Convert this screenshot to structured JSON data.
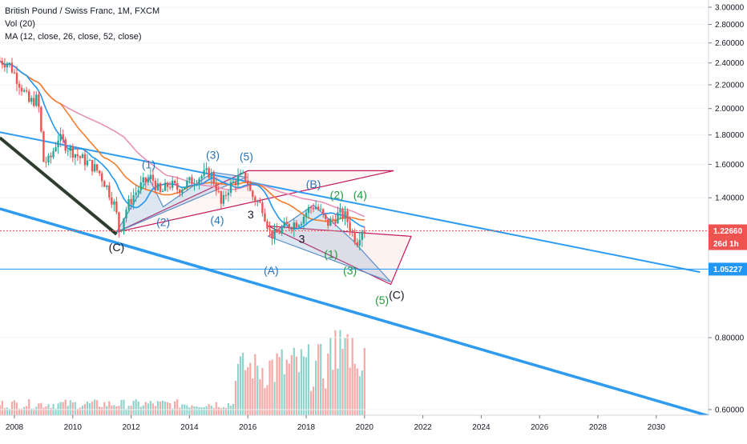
{
  "legend": {
    "title": "British Pound / Swiss Franc, 1M, FXCM",
    "volume": "Vol (20)",
    "ma": "MA (12, close, 26, close, 52, close)"
  },
  "price_axis": {
    "ticks": [
      3.0,
      2.8,
      2.6,
      2.4,
      2.2,
      2.0,
      1.8,
      1.6,
      1.4,
      0.8,
      0.6
    ],
    "tick_labels": [
      "3.00000",
      "2.80000",
      "2.60000",
      "2.40000",
      "2.20000",
      "2.00000",
      "1.80000",
      "1.60000",
      "1.40000",
      "0.80000",
      "0.60000"
    ],
    "current_price_label": "1.22660",
    "countdown_label": "26d 1h",
    "hline_label": "1.05227"
  },
  "time_axis": {
    "ticks": [
      2008,
      2010,
      2012,
      2014,
      2016,
      2018,
      2020,
      2022,
      2024,
      2026,
      2028,
      2030
    ],
    "tick_labels": [
      "2008",
      "2010",
      "2012",
      "2014",
      "2016",
      "2018",
      "2020",
      "2022",
      "2024",
      "2026",
      "2028",
      "2030"
    ]
  },
  "colors": {
    "up": "#26a69a",
    "down": "#ef5350",
    "ma12": "#2196f3",
    "ma26": "#f57c2b",
    "ma52": "#e991b4",
    "trend": "#2e9bf0",
    "wave_blue": "#2a73b8",
    "wave_green": "#1b9e3a",
    "wave_black": "#131722",
    "current": "#ef5350"
  },
  "wave_labels": [
    {
      "text": "(1)",
      "t": 2012.6,
      "p": 1.575,
      "color": "wave_blue"
    },
    {
      "text": "(2)",
      "t": 2013.1,
      "p": 1.25,
      "color": "wave_blue"
    },
    {
      "text": "(3)",
      "t": 2014.8,
      "p": 1.635,
      "color": "wave_blue"
    },
    {
      "text": "(4)",
      "t": 2014.95,
      "p": 1.26,
      "color": "wave_blue"
    },
    {
      "text": "(5)",
      "t": 2015.95,
      "p": 1.625,
      "color": "wave_blue"
    },
    {
      "text": "(C)",
      "t": 2011.5,
      "p": 1.13,
      "color": "wave_black"
    },
    {
      "text": "3",
      "t": 2016.1,
      "p": 1.29,
      "color": "wave_black"
    },
    {
      "text": "3",
      "t": 2017.85,
      "p": 1.17,
      "color": "wave_black"
    },
    {
      "text": "(B)",
      "t": 2018.25,
      "p": 1.455,
      "color": "wave_blue"
    },
    {
      "text": "(A)",
      "t": 2016.8,
      "p": 1.03,
      "color": "wave_blue"
    },
    {
      "text": "(2)",
      "t": 2019.05,
      "p": 1.395,
      "color": "wave_green"
    },
    {
      "text": "(4)",
      "t": 2019.85,
      "p": 1.395,
      "color": "wave_green"
    },
    {
      "text": "(1)",
      "t": 2018.85,
      "p": 1.1,
      "color": "wave_green"
    },
    {
      "text": "(3)",
      "t": 2019.5,
      "p": 1.03,
      "color": "wave_green"
    },
    {
      "text": "(5)",
      "t": 2020.6,
      "p": 0.915,
      "color": "wave_green"
    },
    {
      "text": "(C)",
      "t": 2021.1,
      "p": 0.935,
      "color": "wave_black"
    }
  ],
  "chart_data": {
    "type": "candlestick",
    "title": "British Pound / Swiss Franc, 1M, FXCM",
    "symbol": "GBPCHF",
    "interval": "1M",
    "source": "FXCM",
    "xlim": [
      2007.5,
      2031.5
    ],
    "ylim": [
      0.58,
      3.02
    ],
    "price_scale": "log",
    "current_price": 1.2266,
    "horizontal_level": 1.05227,
    "anchors": [
      [
        2007.5,
        2.42
      ],
      [
        2007.8,
        2.4
      ],
      [
        2008.0,
        2.3
      ],
      [
        2008.3,
        2.15
      ],
      [
        2008.5,
        2.05
      ],
      [
        2008.8,
        2.08
      ],
      [
        2009.0,
        1.62
      ],
      [
        2009.2,
        1.62
      ],
      [
        2009.5,
        1.78
      ],
      [
        2009.8,
        1.72
      ],
      [
        2010.2,
        1.65
      ],
      [
        2010.6,
        1.6
      ],
      [
        2010.9,
        1.55
      ],
      [
        2011.2,
        1.45
      ],
      [
        2011.45,
        1.35
      ],
      [
        2011.6,
        1.22
      ],
      [
        2011.8,
        1.33
      ],
      [
        2012.1,
        1.42
      ],
      [
        2012.4,
        1.48
      ],
      [
        2012.7,
        1.52
      ],
      [
        2013.0,
        1.42
      ],
      [
        2013.3,
        1.48
      ],
      [
        2013.6,
        1.45
      ],
      [
        2013.9,
        1.48
      ],
      [
        2014.3,
        1.52
      ],
      [
        2014.7,
        1.55
      ],
      [
        2014.95,
        1.45
      ],
      [
        2015.1,
        1.35
      ],
      [
        2015.3,
        1.45
      ],
      [
        2015.7,
        1.52
      ],
      [
        2015.95,
        1.52
      ],
      [
        2016.1,
        1.42
      ],
      [
        2016.3,
        1.38
      ],
      [
        2016.5,
        1.35
      ],
      [
        2016.75,
        1.22
      ],
      [
        2016.9,
        1.2
      ],
      [
        2017.2,
        1.24
      ],
      [
        2017.5,
        1.26
      ],
      [
        2017.8,
        1.28
      ],
      [
        2018.1,
        1.34
      ],
      [
        2018.3,
        1.36
      ],
      [
        2018.5,
        1.32
      ],
      [
        2018.7,
        1.26
      ],
      [
        2018.9,
        1.28
      ],
      [
        2019.1,
        1.31
      ],
      [
        2019.35,
        1.3
      ],
      [
        2019.6,
        1.21
      ],
      [
        2019.75,
        1.18
      ],
      [
        2019.9,
        1.24
      ],
      [
        2020.05,
        1.2266
      ]
    ],
    "ma_periods": [
      12,
      26,
      52
    ],
    "volume_window": 20
  }
}
